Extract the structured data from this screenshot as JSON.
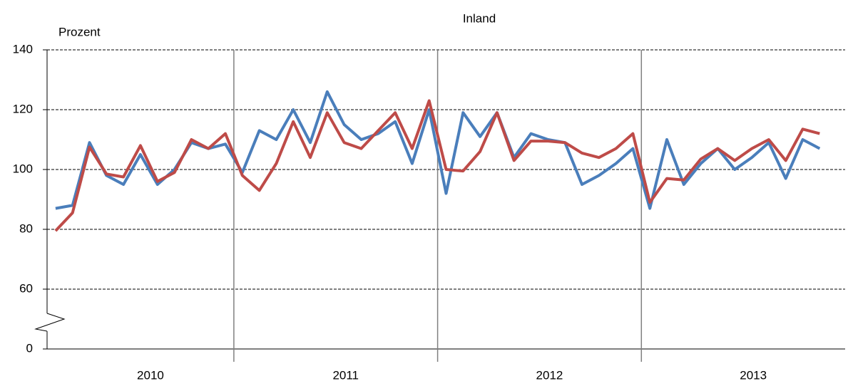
{
  "chart_data": {
    "type": "line",
    "title": "Inland",
    "y_label": "Prozent",
    "categories": [
      "2010",
      "2011",
      "2012",
      "2013"
    ],
    "x": [
      1,
      2,
      3,
      4,
      5,
      6,
      7,
      8,
      9,
      10,
      11,
      12,
      13,
      14,
      15,
      16,
      17,
      18,
      19,
      20,
      21,
      22,
      23,
      24,
      25,
      26,
      27,
      28,
      29,
      30,
      31,
      32,
      33,
      34,
      35,
      36,
      37,
      38,
      39,
      40,
      41,
      42,
      43,
      44,
      45,
      46
    ],
    "xlim": [
      0.5,
      47.5
    ],
    "x_separators": [
      12,
      24,
      36
    ],
    "series": [
      {
        "color": "#4a7ebb",
        "values": [
          87,
          88,
          109,
          98,
          95,
          105,
          95,
          100,
          109,
          107,
          108.5,
          99,
          113,
          110,
          120,
          109,
          126,
          115,
          110,
          112,
          116,
          102,
          120,
          92,
          119,
          111,
          119,
          104,
          112,
          110,
          109,
          95,
          98,
          102,
          107,
          87,
          110,
          95,
          102,
          107,
          100,
          104,
          109,
          97,
          110,
          107
        ]
      },
      {
        "color": "#be4b48",
        "values": [
          79.5,
          85.5,
          107.5,
          98.5,
          97.5,
          108,
          96,
          99,
          110,
          107,
          112,
          98,
          93,
          102,
          116,
          104,
          119,
          109,
          107,
          113,
          119,
          107,
          123,
          100,
          99.5,
          106,
          119,
          103,
          109.5,
          109.5,
          109,
          105.5,
          104,
          107,
          112,
          89,
          97,
          96.5,
          103.5,
          107,
          103,
          107,
          110,
          103,
          113.5,
          112
        ]
      }
    ],
    "ylim": [
      0,
      140
    ],
    "ybreak": [
      0,
      40
    ],
    "yticks": [
      0,
      60,
      80,
      100,
      120,
      140
    ],
    "grid": true
  }
}
